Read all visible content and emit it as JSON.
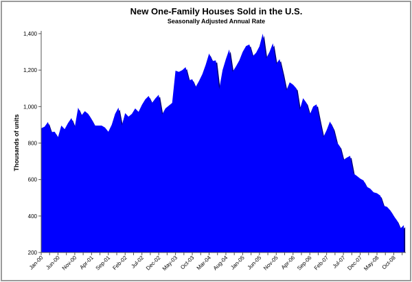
{
  "chart_data": {
    "type": "area",
    "title": "New One-Family Houses Sold in the U.S.",
    "subtitle": "Seasonally Adjusted Annual Rate",
    "ylabel": "Thousands of units",
    "xlabel": "",
    "ylim": [
      200,
      1400
    ],
    "yticks": [
      "200",
      "400",
      "600",
      "800",
      "1,000",
      "1,200",
      "1,400"
    ],
    "ytick_values": [
      200,
      400,
      600,
      800,
      1000,
      1200,
      1400
    ],
    "xtick_labels": [
      "Jan-00",
      "Jun-00",
      "Nov-00",
      "Apr-01",
      "Sep-01",
      "Feb-02",
      "Jul-02",
      "Dec-02",
      "May-03",
      "Oct-03",
      "Mar-04",
      "Aug-04",
      "Jan-05",
      "Jun-05",
      "Nov-05",
      "Apr-06",
      "Sep-06",
      "Feb-07",
      "Jul-07",
      "Dec-07",
      "May-08",
      "Oct-08"
    ],
    "x_start": "Jan-00",
    "x_frequency": "monthly",
    "grid": false,
    "legend": "none",
    "fill_color": "#0000ff",
    "edge_color": "#00007a",
    "values": [
      881,
      890,
      915,
      860,
      862,
      832,
      896,
      876,
      910,
      937,
      888,
      994,
      952,
      975,
      960,
      930,
      896,
      896,
      896,
      885,
      862,
      900,
      960,
      994,
      896,
      964,
      945,
      960,
      990,
      971,
      1010,
      1040,
      1058,
      1020,
      1045,
      1065,
      956,
      990,
      1005,
      1020,
      1197,
      1190,
      1200,
      1216,
      1144,
      1150,
      1107,
      1140,
      1178,
      1230,
      1291,
      1250,
      1253,
      1095,
      1200,
      1260,
      1313,
      1190,
      1220,
      1253,
      1300,
      1332,
      1340,
      1276,
      1295,
      1330,
      1400,
      1264,
      1300,
      1347,
      1234,
      1260,
      1180,
      1088,
      1133,
      1120,
      1100,
      982,
      1046,
      1020,
      956,
      1000,
      1012,
      920,
      832,
      870,
      918,
      880,
      806,
      780,
      708,
      720,
      730,
      633,
      620,
      605,
      595,
      560,
      550,
      530,
      525,
      512,
      456,
      450,
      430,
      400,
      375,
      332,
      350
    ]
  }
}
